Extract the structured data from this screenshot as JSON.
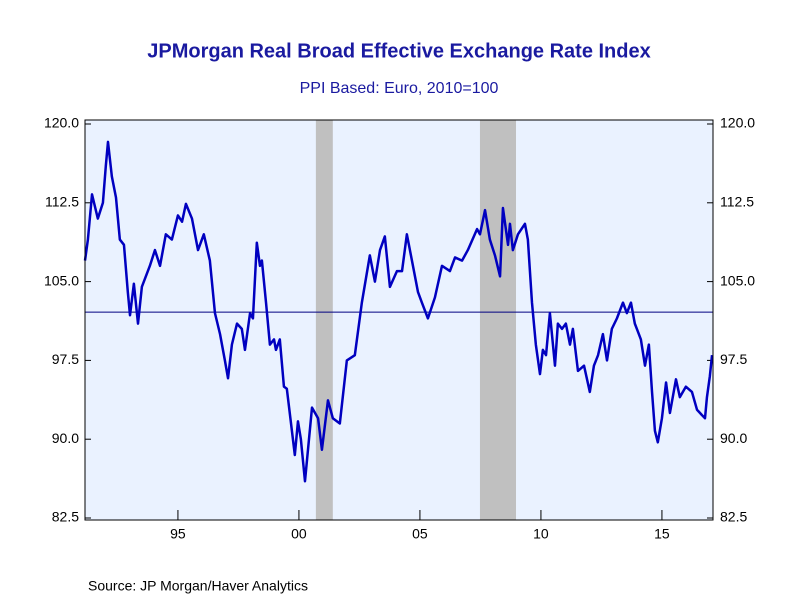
{
  "chart_data": {
    "type": "line",
    "title": "JPMorgan Real Broad Effective Exchange Rate Index",
    "subtitle": "PPI Based: Euro, 2010=100",
    "source": "Source:  JP Morgan/Haver Analytics",
    "xlim": [
      1991.16,
      2017.11
    ],
    "xticks": [
      {
        "value": 1995,
        "label": "95"
      },
      {
        "value": 2000,
        "label": "00"
      },
      {
        "value": 2005,
        "label": "05"
      },
      {
        "value": 2010,
        "label": "10"
      },
      {
        "value": 2015,
        "label": "15"
      }
    ],
    "ylim": [
      82.5,
      120
    ],
    "yticks": [
      {
        "value": 82.5,
        "label": "82.5"
      },
      {
        "value": 90,
        "label": "90.0"
      },
      {
        "value": 97.5,
        "label": "97.5"
      },
      {
        "value": 105,
        "label": "105.0"
      },
      {
        "value": 112.5,
        "label": "112.5"
      },
      {
        "value": 120,
        "label": "120.0"
      }
    ],
    "y2lim": [
      82.5,
      120
    ],
    "y2ticks": [
      {
        "value": 82.5,
        "label": "82.5"
      },
      {
        "value": 90,
        "label": "90.0"
      },
      {
        "value": 97.5,
        "label": "97.5"
      },
      {
        "value": 105,
        "label": "105.0"
      },
      {
        "value": 112.5,
        "label": "112.5"
      },
      {
        "value": 120,
        "label": "120.0"
      }
    ],
    "hline": 102.1,
    "hline_color": "#000080",
    "shaded_periods": [
      [
        2000.7,
        2001.4
      ],
      [
        2007.48,
        2008.97
      ]
    ],
    "shade_color": "#c0c0c0",
    "plot_background": "#eaf2ff",
    "x": [
      1991.16,
      1991.28,
      1991.45,
      1991.69,
      1991.9,
      1992.02,
      1992.11,
      1992.27,
      1992.44,
      1992.6,
      1992.77,
      1992.93,
      1993.02,
      1993.18,
      1993.35,
      1993.51,
      1993.84,
      1994.05,
      1994.26,
      1994.5,
      1994.75,
      1995.0,
      1995.17,
      1995.33,
      1995.58,
      1995.83,
      1996.07,
      1996.32,
      1996.53,
      1996.74,
      1996.94,
      1997.07,
      1997.23,
      1997.44,
      1997.64,
      1997.77,
      1997.98,
      1998.1,
      1998.26,
      1998.39,
      1998.47,
      1998.64,
      1998.8,
      1998.97,
      1999.05,
      1999.21,
      1999.38,
      1999.5,
      1999.83,
      1999.96,
      2000.08,
      2000.25,
      2000.54,
      2000.79,
      2000.95,
      2001.2,
      2001.4,
      2001.69,
      2001.98,
      2002.31,
      2002.6,
      2002.93,
      2003.14,
      2003.35,
      2003.55,
      2003.76,
      2004.05,
      2004.26,
      2004.46,
      2004.67,
      2004.92,
      2005.08,
      2005.33,
      2005.62,
      2005.91,
      2006.24,
      2006.45,
      2006.74,
      2006.98,
      2007.36,
      2007.48,
      2007.69,
      2007.89,
      2008.1,
      2008.31,
      2008.43,
      2008.64,
      2008.72,
      2008.84,
      2009.05,
      2009.34,
      2009.46,
      2009.63,
      2009.79,
      2009.96,
      2010.08,
      2010.21,
      2010.37,
      2010.58,
      2010.7,
      2010.87,
      2011.03,
      2011.2,
      2011.32,
      2011.53,
      2011.78,
      2012.02,
      2012.19,
      2012.36,
      2012.56,
      2012.73,
      2012.93,
      2013.14,
      2013.39,
      2013.55,
      2013.72,
      2013.88,
      2014.13,
      2014.3,
      2014.46,
      2014.59,
      2014.71,
      2014.83,
      2015.0,
      2015.17,
      2015.33,
      2015.58,
      2015.74,
      2015.99,
      2016.24,
      2016.45,
      2016.65,
      2016.78,
      2016.86,
      2016.98,
      2017.07
    ],
    "series": [
      {
        "name": "JPMorgan Real Broad Effective Exchange Rate Index",
        "color": "#0000c0",
        "values": [
          107,
          109,
          113.3,
          111,
          112.5,
          116,
          118.3,
          115,
          113,
          109,
          108.5,
          104,
          101.8,
          104.8,
          101,
          104.5,
          106.5,
          108,
          106.5,
          109.5,
          109,
          111.3,
          110.7,
          112.4,
          111,
          108,
          109.5,
          107,
          102,
          100,
          97.5,
          95.8,
          99,
          101,
          100.5,
          98.5,
          102,
          101.5,
          108.7,
          106.5,
          107,
          103,
          99,
          99.5,
          98.5,
          99.5,
          95,
          94.8,
          88.5,
          91.7,
          90,
          86,
          93,
          92,
          89,
          93.7,
          92,
          91.5,
          97.5,
          98,
          103,
          107.5,
          105,
          108,
          109.3,
          104.5,
          106,
          106,
          109.5,
          107,
          104,
          103,
          101.5,
          103.5,
          106.5,
          106,
          107.3,
          107,
          108,
          110,
          109.5,
          111.8,
          109,
          107.5,
          105.5,
          112,
          108.5,
          110.5,
          108,
          109.5,
          110.5,
          109,
          103,
          99,
          96.2,
          98.5,
          98,
          102,
          97,
          101,
          100.5,
          101,
          99,
          100.5,
          96.5,
          97,
          94.5,
          97,
          98,
          100,
          97.5,
          100.5,
          101.5,
          103,
          102,
          103,
          101,
          99.5,
          97,
          99,
          94.5,
          90.8,
          89.7,
          92,
          95.4,
          92.5,
          95.7,
          94,
          95,
          94.5,
          92.8,
          92.3,
          92,
          94,
          96,
          98
        ]
      }
    ]
  }
}
